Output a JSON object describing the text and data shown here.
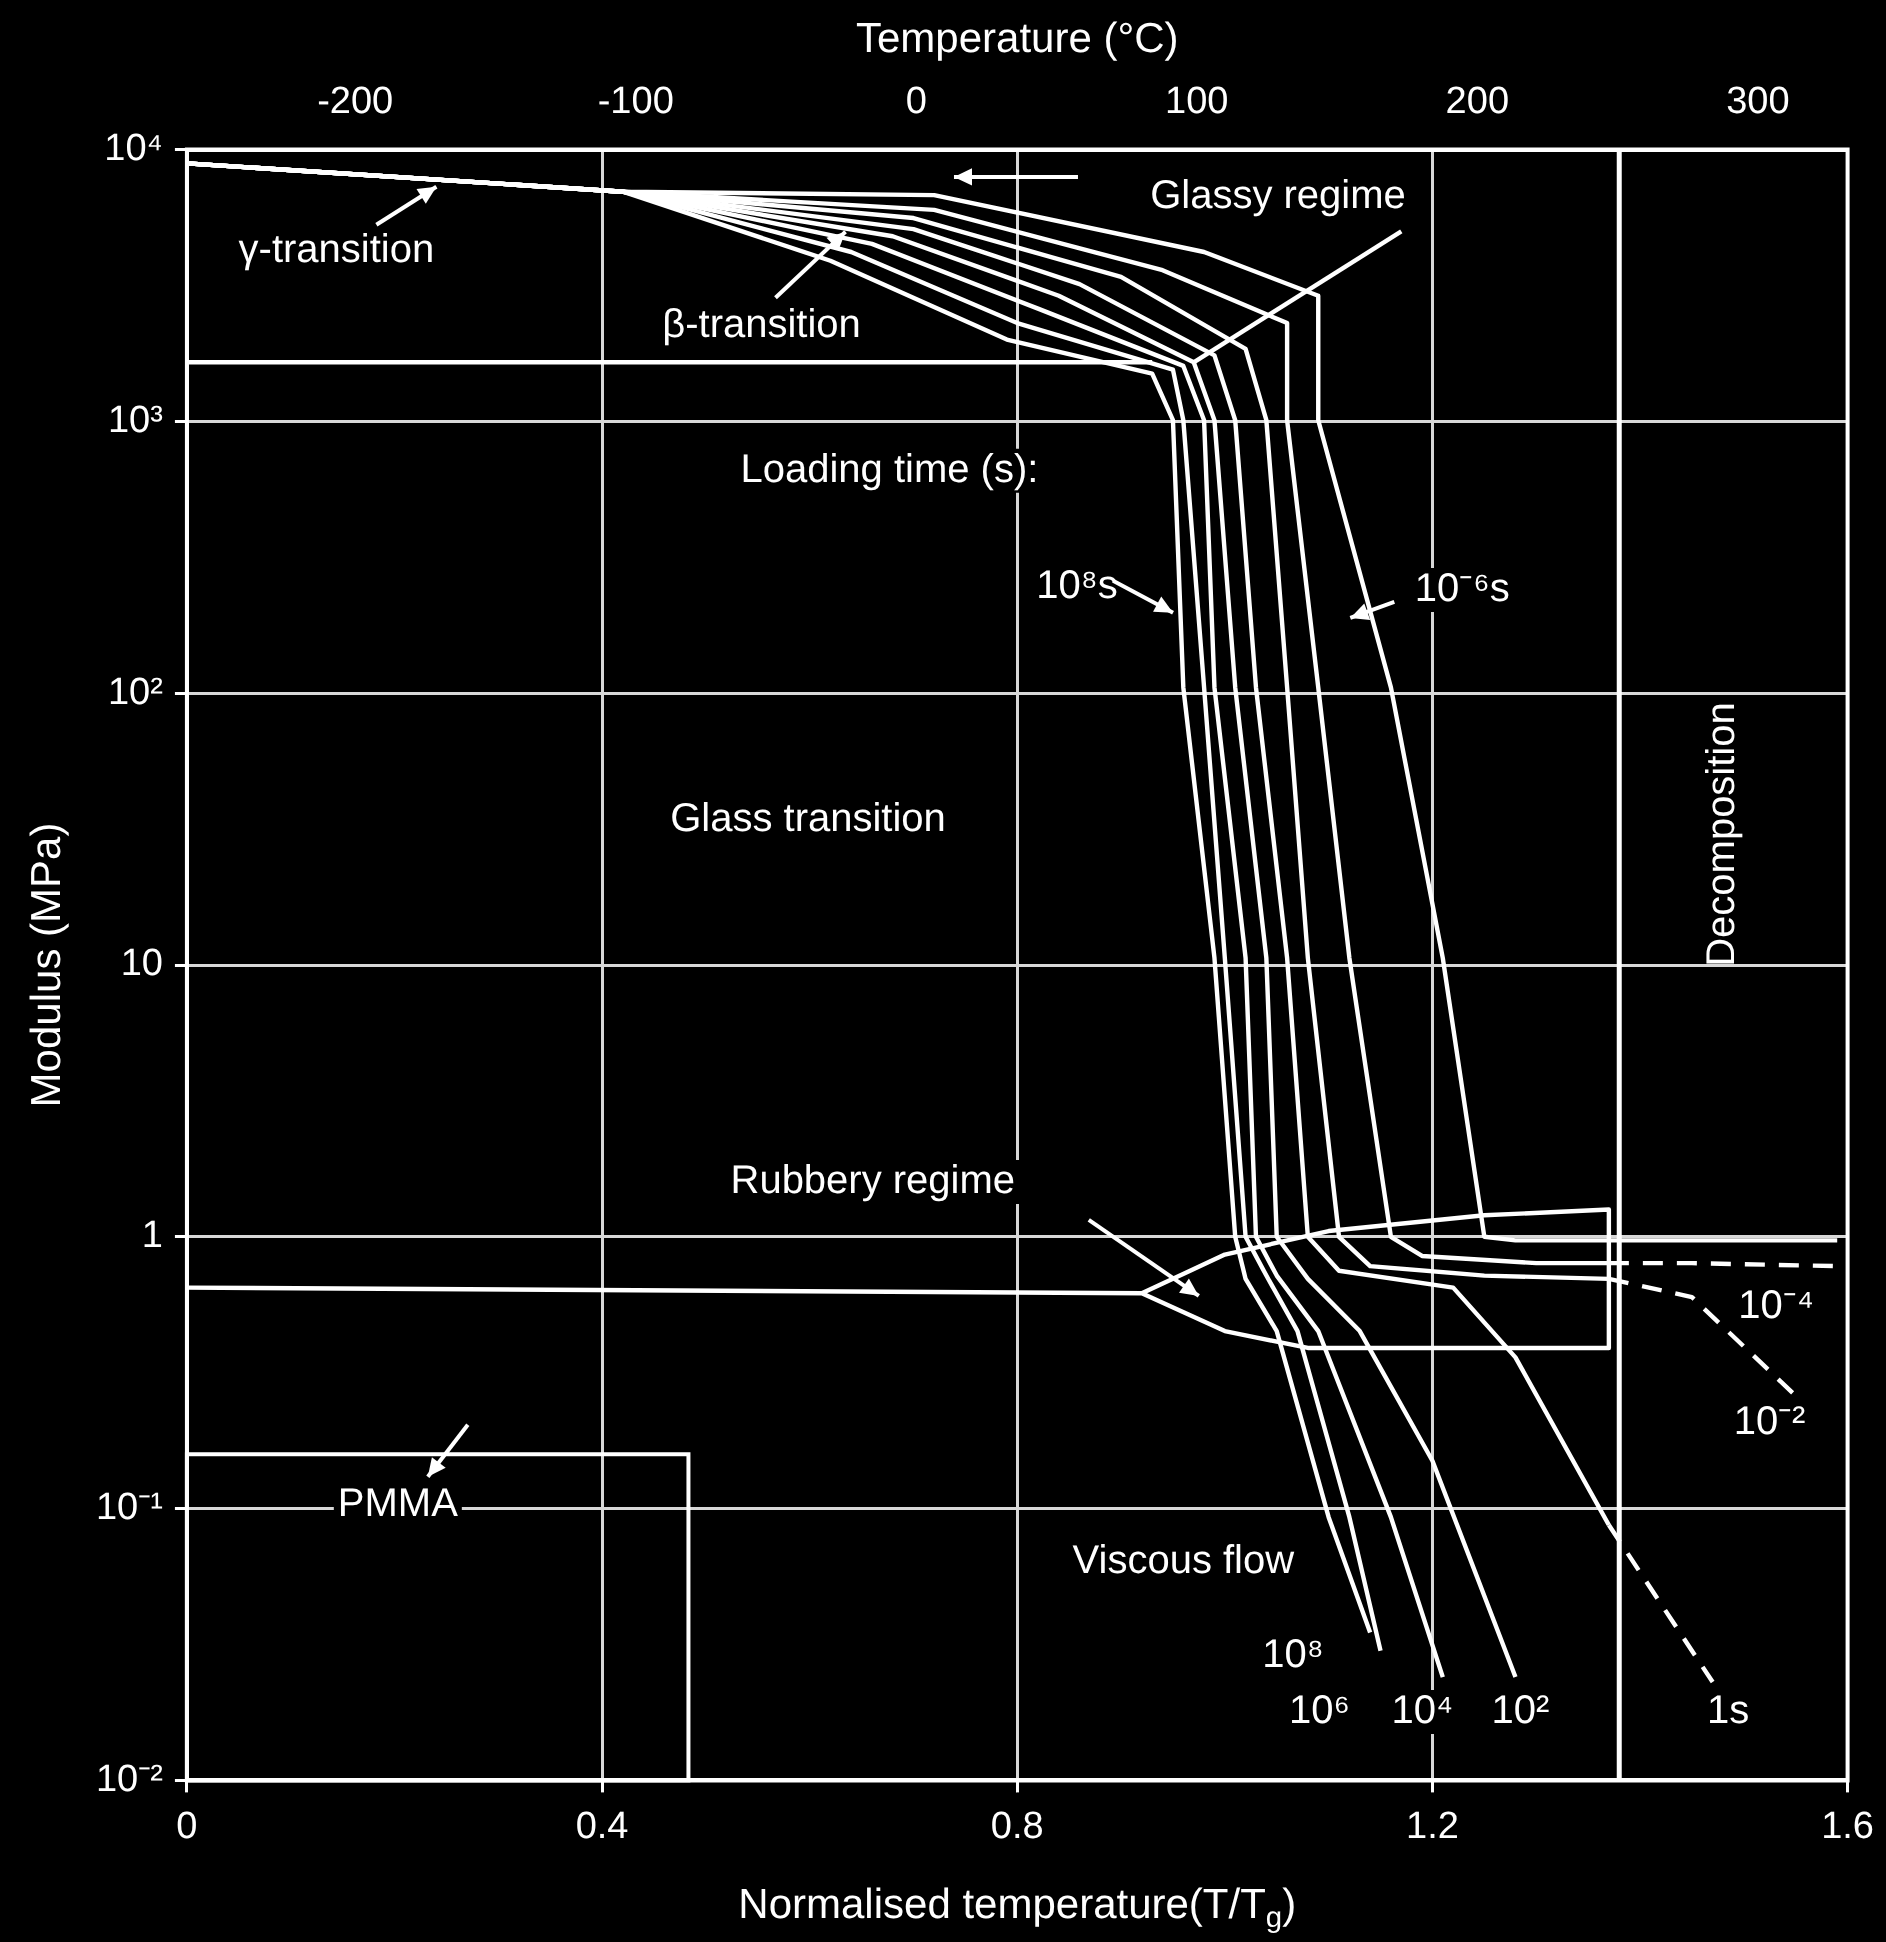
{
  "chart_data": {
    "type": "line",
    "xlabel": "Normalised temperature(T/T$_{g}$)",
    "ylabel": "Modulus (MPa)",
    "x2label": "Temperature (°C)",
    "xlim": [
      0,
      1.6
    ],
    "xticks": [
      0,
      0.4,
      0.8,
      1.2,
      1.6
    ],
    "x2lim": [
      -260,
      332
    ],
    "x2ticks": [
      -200,
      -100,
      0,
      100,
      200,
      300
    ],
    "ylim": [
      0.01,
      10000
    ],
    "yticks": [
      {
        "value": 0.01,
        "label": "10⁻²"
      },
      {
        "value": 0.1,
        "label": "10⁻¹"
      },
      1,
      10,
      {
        "value": 100,
        "label": "10²"
      },
      {
        "value": 1000,
        "label": "10³"
      },
      {
        "value": 10000,
        "label": "10⁴"
      }
    ],
    "log": "y",
    "grid": true,
    "marker": "none",
    "line_style": "solid",
    "ref_lines": [
      {
        "axis": "x",
        "value": 1.38,
        "label": "Decomposition"
      }
    ],
    "annotations": [
      "γ-transition",
      "β-transition",
      "Glassy regime",
      "Loading time (s):",
      "10⁸s",
      "10⁻⁶s",
      "Glass transition",
      "Rubbery regime",
      "PMMA",
      "Viscous flow",
      "10⁸",
      "10⁶",
      "10⁴",
      "10²",
      "1s",
      "10⁻²",
      "10⁻⁴"
    ],
    "series": [
      {
        "color": "#ffffff",
        "x": [
          0,
          0.42,
          0.62,
          0.79,
          0.93,
          0.95,
          0.96,
          0.99,
          1.01,
          1.02,
          1.05,
          1.1,
          1.14
        ],
        "values": [
          8900,
          7000,
          3900,
          2000,
          1500,
          1010,
          105,
          10.6,
          1.0,
          0.7,
          0.45,
          0.093,
          0.035
        ]
      },
      {
        "color": "#ffffff",
        "x": [
          0,
          0.42,
          0.64,
          0.8,
          0.95,
          0.96,
          0.98,
          1.0,
          1.02,
          1.04,
          1.07,
          1.12,
          1.15
        ],
        "values": [
          8900,
          7000,
          4200,
          2300,
          1550,
          1010,
          105,
          10.6,
          1.0,
          0.72,
          0.45,
          0.093,
          0.03
        ]
      },
      {
        "color": "#ffffff",
        "x": [
          0,
          0.42,
          0.66,
          0.82,
          0.96,
          0.98,
          0.99,
          1.02,
          1.03,
          1.05,
          1.09,
          1.16,
          1.21
        ],
        "values": [
          8900,
          7000,
          4500,
          2600,
          1600,
          1010,
          105,
          10.6,
          1.0,
          0.72,
          0.45,
          0.093,
          0.024
        ]
      },
      {
        "color": "#ffffff",
        "x": [
          0,
          0.42,
          0.68,
          0.84,
          0.97,
          0.99,
          1.01,
          1.04,
          1.05,
          1.08,
          1.13,
          1.2,
          1.28
        ],
        "values": [
          8900,
          7000,
          4800,
          2900,
          1650,
          1010,
          105,
          10.6,
          1.0,
          0.7,
          0.45,
          0.15,
          0.024
        ]
      },
      {
        "color": "#ffffff",
        "x": [
          0,
          0.42,
          0.7,
          0.86,
          0.99,
          1.01,
          1.03,
          1.06,
          1.08,
          1.11,
          1.22,
          1.28,
          1.37
        ],
        "values": [
          8900,
          7000,
          5100,
          3200,
          1750,
          1010,
          105,
          10.6,
          1.0,
          0.75,
          0.65,
          0.36,
          0.087
        ]
      },
      {
        "color": "#ffffff",
        "x": [
          0,
          0.42,
          0.7,
          0.9,
          1.02,
          1.04,
          1.06,
          1.08,
          1.11,
          1.14,
          1.25,
          1.37
        ],
        "values": [
          8900,
          7000,
          5600,
          3400,
          1850,
          1010,
          105,
          10.6,
          1.0,
          0.78,
          0.72,
          0.7
        ]
      },
      {
        "color": "#ffffff",
        "x": [
          0,
          0.42,
          0.72,
          0.94,
          1.06,
          1.06,
          1.09,
          1.12,
          1.16,
          1.19,
          1.3,
          1.37
        ],
        "values": [
          8900,
          7000,
          6000,
          3600,
          2300,
          1010,
          105,
          10.6,
          1.0,
          0.85,
          0.8,
          0.8
        ]
      },
      {
        "color": "#ffffff",
        "x": [
          0,
          0.42,
          0.72,
          0.98,
          1.09,
          1.09,
          1.16,
          1.21,
          1.25,
          1.28,
          1.59
        ],
        "values": [
          8900,
          7000,
          6800,
          4200,
          2900,
          1010,
          105,
          10.6,
          1.0,
          0.97,
          0.97
        ]
      },
      {
        "color": "#ffffff",
        "line_style": "dashed",
        "x": [
          1.37,
          1.47
        ],
        "values": [
          0.087,
          0.023
        ]
      },
      {
        "color": "#ffffff",
        "line_style": "dashed",
        "x": [
          1.37,
          1.45,
          1.55
        ],
        "values": [
          0.7,
          0.6,
          0.26
        ]
      },
      {
        "color": "#ffffff",
        "line_style": "dashed",
        "x": [
          1.37,
          1.45,
          1.59
        ],
        "values": [
          0.8,
          0.8,
          0.78
        ]
      },
      {
        "color": "#ffffff",
        "x": [
          0,
          0.93
        ],
        "values": [
          1650,
          1650
        ]
      },
      {
        "color": "#ffffff",
        "x": [
          0,
          0.92,
          1.0,
          1.1,
          1.25,
          1.37,
          1.37,
          1.08,
          1.0,
          0.92
        ],
        "values": [
          0.65,
          0.62,
          0.86,
          1.05,
          1.2,
          1.26,
          0.39,
          0.39,
          0.45,
          0.62
        ]
      },
      {
        "color": "#ffffff",
        "x": [
          0.97,
          1.17
        ],
        "values": [
          1650,
          5000
        ]
      }
    ]
  }
}
